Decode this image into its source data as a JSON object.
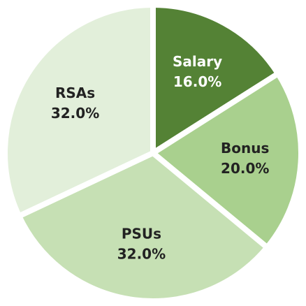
{
  "chart_data": {
    "type": "pie",
    "categories": [
      "Salary",
      "Bonus",
      "PSUs",
      "RSAs"
    ],
    "values": [
      16,
      20,
      32,
      32
    ],
    "value_labels": [
      "16.0%",
      "20.0%",
      "32.0%",
      "32.0%"
    ],
    "colors": [
      "#548235",
      "#a9d08e",
      "#c6e0b4",
      "#e2efda"
    ],
    "start_angle": 0,
    "direction": "clockwise"
  }
}
